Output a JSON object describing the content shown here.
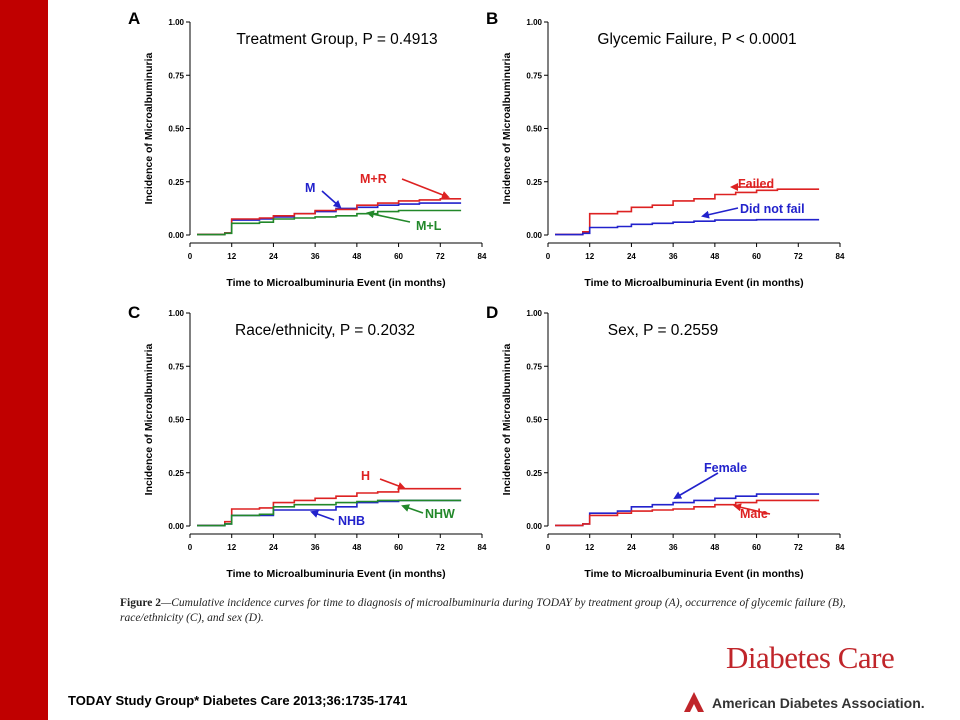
{
  "caption": {
    "figure_number": "Figure 2",
    "text": "—Cumulative incidence curves for time to diagnosis of microalbuminuria during TODAY by treatment group (A), occurrence of glycemic failure (B), race/ethnicity (C), and sex (D)."
  },
  "citation": "TODAY Study Group* Diabetes Care 2013;36:1735-1741",
  "journal_name": "Diabetes Care",
  "publisher": "American Diabetes Association.",
  "chart_data": [
    {
      "panel": "A",
      "type": "line",
      "title": "Treatment Group, P = 0.4913",
      "xlabel": "Time to Microalbuminuria Event (in months)",
      "ylabel": "Incidence of Microalbuminuria",
      "xlim": [
        0,
        84
      ],
      "ylim": [
        0,
        1
      ],
      "xticks": [
        "0",
        "12",
        "24",
        "36",
        "48",
        "60",
        "72",
        "84"
      ],
      "yticks": [
        "0.00",
        "0.25",
        "0.50",
        "0.75",
        "1.00"
      ],
      "series": [
        {
          "name": "M",
          "color": "#2222cc",
          "x": [
            2,
            10,
            12,
            20,
            24,
            30,
            36,
            42,
            48,
            54,
            60,
            66,
            72,
            78
          ],
          "y": [
            0.003,
            0.01,
            0.07,
            0.075,
            0.085,
            0.1,
            0.11,
            0.125,
            0.13,
            0.14,
            0.145,
            0.15,
            0.15,
            0.15
          ]
        },
        {
          "name": "M+R",
          "color": "#dd2222",
          "x": [
            2,
            10,
            12,
            20,
            24,
            30,
            36,
            42,
            48,
            54,
            60,
            66,
            72,
            78
          ],
          "y": [
            0.003,
            0.01,
            0.075,
            0.08,
            0.09,
            0.1,
            0.115,
            0.12,
            0.14,
            0.15,
            0.16,
            0.165,
            0.17,
            0.17
          ]
        },
        {
          "name": "M+L",
          "color": "#22882a",
          "x": [
            2,
            10,
            12,
            20,
            24,
            30,
            36,
            42,
            48,
            54,
            60,
            66,
            72,
            78
          ],
          "y": [
            0.002,
            0.008,
            0.055,
            0.06,
            0.075,
            0.08,
            0.085,
            0.09,
            0.1,
            0.11,
            0.115,
            0.115,
            0.115,
            0.115
          ]
        }
      ],
      "annotations": [
        {
          "series": "M",
          "text": "M"
        },
        {
          "series": "M+R",
          "text": "M+R"
        },
        {
          "series": "M+L",
          "text": "M+L"
        }
      ]
    },
    {
      "panel": "B",
      "type": "line",
      "title": "Glycemic Failure, P < 0.0001",
      "xlabel": "Time to Microalbuminuria Event (in months)",
      "ylabel": "Incidence of Microalbuminuria",
      "xlim": [
        0,
        84
      ],
      "ylim": [
        0,
        1
      ],
      "xticks": [
        "0",
        "12",
        "24",
        "36",
        "48",
        "60",
        "72",
        "84"
      ],
      "yticks": [
        "0.00",
        "0.25",
        "0.50",
        "0.75",
        "1.00"
      ],
      "series": [
        {
          "name": "Failed",
          "color": "#dd2222",
          "x": [
            2,
            10,
            12,
            20,
            24,
            30,
            36,
            42,
            48,
            54,
            60,
            66,
            72,
            78
          ],
          "y": [
            0.003,
            0.015,
            0.1,
            0.11,
            0.13,
            0.14,
            0.16,
            0.17,
            0.19,
            0.2,
            0.21,
            0.215,
            0.215,
            0.215
          ]
        },
        {
          "name": "Did not fail",
          "color": "#2222cc",
          "x": [
            2,
            10,
            12,
            20,
            24,
            30,
            36,
            42,
            48,
            54,
            60,
            66,
            72,
            78
          ],
          "y": [
            0.002,
            0.008,
            0.035,
            0.04,
            0.05,
            0.055,
            0.06,
            0.065,
            0.07,
            0.07,
            0.072,
            0.072,
            0.072,
            0.072
          ]
        }
      ],
      "annotations": [
        {
          "series": "Failed",
          "text": "Failed"
        },
        {
          "series": "Did not fail",
          "text": "Did not fail"
        }
      ]
    },
    {
      "panel": "C",
      "type": "line",
      "title": "Race/ethnicity, P = 0.2032",
      "xlabel": "Time to Microalbuminuria Event (in months)",
      "ylabel": "Incidence of Microalbuminuria",
      "xlim": [
        0,
        84
      ],
      "ylim": [
        0,
        1
      ],
      "xticks": [
        "0",
        "12",
        "24",
        "36",
        "48",
        "60",
        "72",
        "84"
      ],
      "yticks": [
        "0.00",
        "0.25",
        "0.50",
        "0.75",
        "1.00"
      ],
      "series": [
        {
          "name": "H",
          "color": "#dd2222",
          "x": [
            2,
            10,
            12,
            20,
            24,
            30,
            36,
            42,
            48,
            54,
            60,
            66,
            72,
            78
          ],
          "y": [
            0.003,
            0.02,
            0.08,
            0.085,
            0.11,
            0.12,
            0.13,
            0.14,
            0.155,
            0.16,
            0.175,
            0.175,
            0.175,
            0.175
          ]
        },
        {
          "name": "NHB",
          "color": "#2222cc",
          "x": [
            2,
            10,
            12,
            20,
            24,
            30,
            36,
            42,
            48,
            54,
            60,
            66,
            72,
            78
          ],
          "y": [
            0.002,
            0.01,
            0.05,
            0.05,
            0.075,
            0.075,
            0.075,
            0.09,
            0.11,
            0.115,
            0.12,
            0.12,
            0.12,
            0.12
          ]
        },
        {
          "name": "NHW",
          "color": "#22882a",
          "x": [
            2,
            10,
            12,
            20,
            24,
            30,
            36,
            42,
            48,
            54,
            60,
            66,
            72,
            78
          ],
          "y": [
            0.002,
            0.01,
            0.05,
            0.055,
            0.09,
            0.1,
            0.1,
            0.11,
            0.115,
            0.12,
            0.12,
            0.12,
            0.12,
            0.12
          ]
        }
      ],
      "annotations": [
        {
          "series": "H",
          "text": "H"
        },
        {
          "series": "NHB",
          "text": "NHB"
        },
        {
          "series": "NHW",
          "text": "NHW"
        }
      ]
    },
    {
      "panel": "D",
      "type": "line",
      "title": "Sex, P = 0.2559",
      "xlabel": "Time to Microalbuminuria Event (in months)",
      "ylabel": "Incidence of Microalbuminuria",
      "xlim": [
        0,
        84
      ],
      "ylim": [
        0,
        1
      ],
      "xticks": [
        "0",
        "12",
        "24",
        "36",
        "48",
        "60",
        "72",
        "84"
      ],
      "yticks": [
        "0.00",
        "0.25",
        "0.50",
        "0.75",
        "1.00"
      ],
      "series": [
        {
          "name": "Female",
          "color": "#2222cc",
          "x": [
            2,
            10,
            12,
            20,
            24,
            30,
            36,
            42,
            48,
            54,
            60,
            66,
            72,
            78
          ],
          "y": [
            0.003,
            0.01,
            0.06,
            0.07,
            0.09,
            0.1,
            0.11,
            0.12,
            0.13,
            0.14,
            0.15,
            0.15,
            0.15,
            0.15
          ]
        },
        {
          "name": "Male",
          "color": "#dd2222",
          "x": [
            2,
            10,
            12,
            20,
            24,
            30,
            36,
            42,
            48,
            54,
            60,
            66,
            72,
            78
          ],
          "y": [
            0.003,
            0.01,
            0.05,
            0.06,
            0.07,
            0.075,
            0.08,
            0.09,
            0.1,
            0.11,
            0.12,
            0.12,
            0.12,
            0.12
          ]
        }
      ],
      "annotations": [
        {
          "series": "Female",
          "text": "Female"
        },
        {
          "series": "Male",
          "text": "Male"
        }
      ]
    }
  ]
}
